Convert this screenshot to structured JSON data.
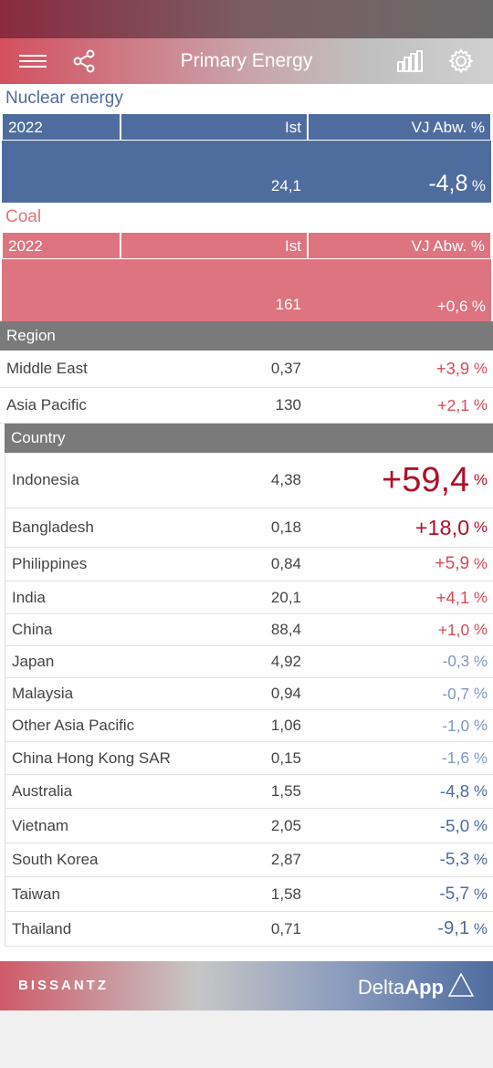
{
  "header": {
    "title": "Primary Energy"
  },
  "nuclear": {
    "title": "Nuclear energy",
    "year": "2022",
    "col_ist": "Ist",
    "col_dev": "VJ Abw. %",
    "ist": "24,1",
    "dev": "-4,8",
    "unit": "%"
  },
  "coal": {
    "title": "Coal",
    "year": "2022",
    "col_ist": "Ist",
    "col_dev": "VJ Abw. %",
    "ist": "161",
    "dev": "+0,6",
    "unit": "%"
  },
  "region": {
    "header": "Region",
    "rows": [
      {
        "name": "Middle East",
        "ist": "0,37",
        "dev": "+3,9"
      },
      {
        "name": "Asia Pacific",
        "ist": "130",
        "dev": "+2,1"
      }
    ]
  },
  "country": {
    "header": "Country",
    "rows": [
      {
        "name": "Indonesia",
        "ist": "4,38",
        "dev": "+59,4"
      },
      {
        "name": "Bangladesh",
        "ist": "0,18",
        "dev": "+18,0"
      },
      {
        "name": "Philippines",
        "ist": "0,84",
        "dev": "+5,9"
      },
      {
        "name": "India",
        "ist": "20,1",
        "dev": "+4,1"
      },
      {
        "name": "China",
        "ist": "88,4",
        "dev": "+1,0"
      },
      {
        "name": "Japan",
        "ist": "4,92",
        "dev": "-0,3"
      },
      {
        "name": "Malaysia",
        "ist": "0,94",
        "dev": "-0,7"
      },
      {
        "name": "Other Asia Pacific",
        "ist": "1,06",
        "dev": "-1,0"
      },
      {
        "name": "China Hong Kong SAR",
        "ist": "0,15",
        "dev": "-1,6"
      },
      {
        "name": "Australia",
        "ist": "1,55",
        "dev": "-4,8"
      },
      {
        "name": "Vietnam",
        "ist": "2,05",
        "dev": "-5,0"
      },
      {
        "name": "South Korea",
        "ist": "2,87",
        "dev": "-5,3"
      },
      {
        "name": "Taiwan",
        "ist": "1,58",
        "dev": "-5,7"
      },
      {
        "name": "Thailand",
        "ist": "0,71",
        "dev": "-9,1"
      }
    ]
  },
  "footer": {
    "brand": "BISSANTZ",
    "app_prefix": "Delta",
    "app_bold": "App"
  },
  "colors": {
    "positive": "#c8102e",
    "negative": "#4f6c9f",
    "nuclear": "#4f6c9f",
    "coal": "#de7480"
  }
}
